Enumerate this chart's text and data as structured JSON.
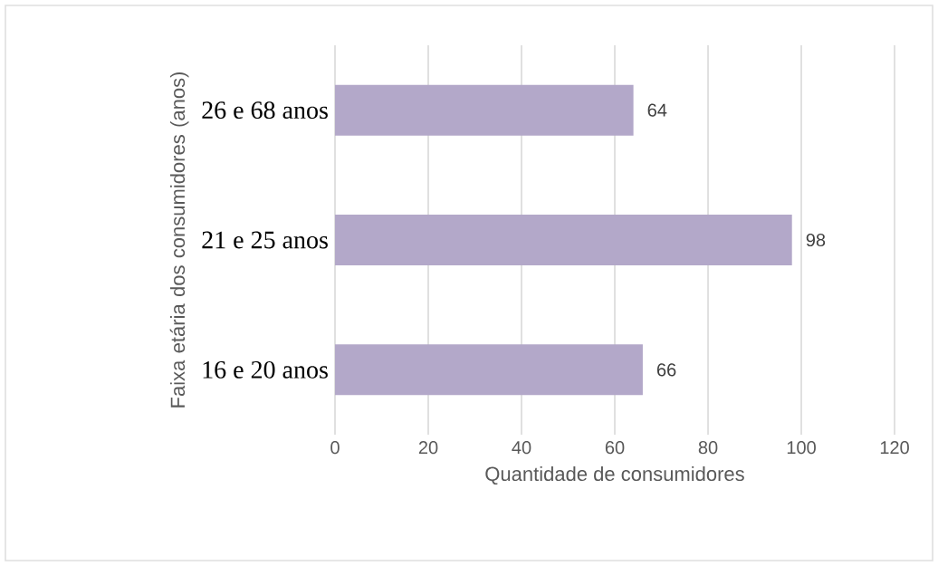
{
  "chart_data": {
    "type": "bar",
    "orientation": "horizontal",
    "categories": [
      "26 e 68 anos",
      "21 e 25 anos",
      "16 e 20 anos"
    ],
    "values": [
      64,
      98,
      66
    ],
    "color": "#b3a8c9",
    "xlabel": "Quantidade de consumidores",
    "ylabel": "Faixa etária dos consumidores (anos)",
    "xlim": [
      0,
      120
    ],
    "xticks": [
      0,
      20,
      40,
      60,
      80,
      100,
      120
    ],
    "grid": "x",
    "data_labels": true
  }
}
